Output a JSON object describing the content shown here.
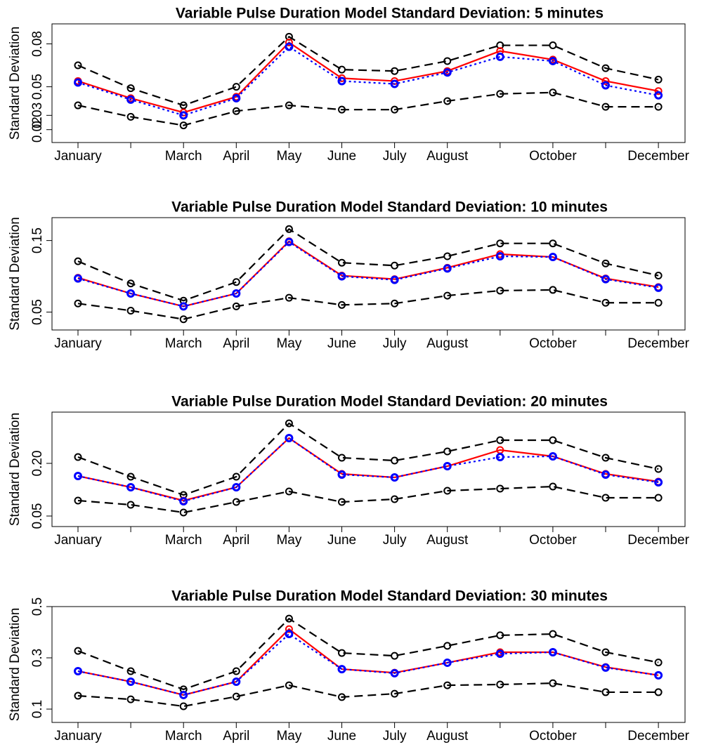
{
  "chart_data": [
    {
      "type": "line",
      "title": "Variable Pulse Duration Model Standard Deviation: 5 minutes",
      "y_label": "Standard Deviation",
      "categories": [
        "January",
        null,
        "March",
        "April",
        "May",
        "June",
        "July",
        "August",
        null,
        "October",
        null,
        "December"
      ],
      "ylim": [
        0.011,
        0.094
      ],
      "yticks": [
        0.02,
        0.03,
        0.05,
        0.08
      ],
      "series": [
        {
          "color": "#000000",
          "dash": "dashed",
          "values": [
            0.065,
            0.049,
            0.037,
            0.05,
            0.085,
            0.062,
            0.061,
            0.068,
            0.079,
            0.079,
            0.063,
            0.055
          ]
        },
        {
          "color": "#ff0000",
          "dash": "solid",
          "values": [
            0.054,
            0.042,
            0.032,
            0.043,
            0.081,
            0.056,
            0.054,
            0.061,
            0.075,
            0.069,
            0.054,
            0.047
          ]
        },
        {
          "color": "#0000ff",
          "dash": "dotted",
          "values": [
            0.053,
            0.041,
            0.03,
            0.042,
            0.078,
            0.054,
            0.052,
            0.06,
            0.071,
            0.068,
            0.051,
            0.044
          ]
        },
        {
          "color": "#000000",
          "dash": "dashed",
          "values": [
            0.037,
            0.029,
            0.023,
            0.033,
            0.037,
            0.034,
            0.034,
            0.04,
            0.045,
            0.046,
            0.036,
            0.036
          ]
        }
      ]
    },
    {
      "type": "line",
      "title": "Variable Pulse Duration Model Standard Deviation: 10 minutes",
      "y_label": "Standard Deviation",
      "categories": [
        "January",
        null,
        "March",
        "April",
        "May",
        "June",
        "July",
        "August",
        null,
        "October",
        null,
        "December"
      ],
      "ylim": [
        0.025,
        0.182
      ],
      "yticks": [
        0.05,
        0.15
      ],
      "series": [
        {
          "color": "#000000",
          "dash": "dashed",
          "values": [
            0.121,
            0.09,
            0.066,
            0.092,
            0.166,
            0.119,
            0.115,
            0.128,
            0.146,
            0.146,
            0.118,
            0.101
          ]
        },
        {
          "color": "#ff0000",
          "dash": "solid",
          "values": [
            0.098,
            0.076,
            0.058,
            0.076,
            0.149,
            0.101,
            0.096,
            0.112,
            0.131,
            0.127,
            0.097,
            0.085
          ]
        },
        {
          "color": "#0000ff",
          "dash": "dotted",
          "values": [
            0.097,
            0.076,
            0.058,
            0.076,
            0.148,
            0.1,
            0.095,
            0.111,
            0.128,
            0.127,
            0.096,
            0.084
          ]
        },
        {
          "color": "#000000",
          "dash": "dashed",
          "values": [
            0.062,
            0.052,
            0.04,
            0.058,
            0.07,
            0.06,
            0.062,
            0.073,
            0.08,
            0.081,
            0.063,
            0.063
          ]
        }
      ]
    },
    {
      "type": "line",
      "title": "Variable Pulse Duration Model Standard Deviation: 20 minutes",
      "y_label": "Standard Deviation",
      "categories": [
        "January",
        null,
        "March",
        "April",
        "May",
        "June",
        "July",
        "August",
        null,
        "October",
        null,
        "December"
      ],
      "ylim": [
        0.02,
        0.346
      ],
      "yticks": [
        0.05,
        {
          "value": 0.2,
          "label": "0.20"
        }
      ],
      "series": [
        {
          "color": "#000000",
          "dash": "dashed",
          "values": [
            0.218,
            0.162,
            0.11,
            0.162,
            0.314,
            0.216,
            0.208,
            0.234,
            0.266,
            0.266,
            0.216,
            0.184
          ]
        },
        {
          "color": "#ff0000",
          "dash": "solid",
          "values": [
            0.164,
            0.132,
            0.094,
            0.132,
            0.272,
            0.17,
            0.16,
            0.192,
            0.238,
            0.22,
            0.17,
            0.148
          ]
        },
        {
          "color": "#0000ff",
          "dash": "dotted",
          "values": [
            0.164,
            0.132,
            0.092,
            0.132,
            0.272,
            0.168,
            0.16,
            0.192,
            0.218,
            0.22,
            0.168,
            0.146
          ]
        },
        {
          "color": "#000000",
          "dash": "dashed",
          "values": [
            0.094,
            0.082,
            0.06,
            0.09,
            0.12,
            0.09,
            0.098,
            0.122,
            0.128,
            0.134,
            0.102,
            0.102
          ]
        }
      ]
    },
    {
      "type": "line",
      "title": "Variable Pulse Duration Model Standard Deviation: 30 minutes",
      "y_label": "Standard Deviation",
      "categories": [
        "January",
        null,
        "March",
        "April",
        "May",
        "June",
        "July",
        "August",
        null,
        "October",
        null,
        "December"
      ],
      "ylim": [
        0.048,
        0.5
      ],
      "yticks": [
        0.1,
        0.3,
        0.5
      ],
      "series": [
        {
          "color": "#000000",
          "dash": "dashed",
          "values": [
            0.327,
            0.248,
            0.177,
            0.248,
            0.453,
            0.319,
            0.308,
            0.347,
            0.388,
            0.393,
            0.322,
            0.282
          ]
        },
        {
          "color": "#ff0000",
          "dash": "solid",
          "values": [
            0.248,
            0.207,
            0.155,
            0.207,
            0.412,
            0.256,
            0.242,
            0.281,
            0.322,
            0.322,
            0.264,
            0.232
          ]
        },
        {
          "color": "#0000ff",
          "dash": "dotted",
          "values": [
            0.248,
            0.207,
            0.155,
            0.207,
            0.393,
            0.256,
            0.24,
            0.281,
            0.316,
            0.322,
            0.262,
            0.232
          ]
        },
        {
          "color": "#000000",
          "dash": "dashed",
          "values": [
            0.152,
            0.138,
            0.111,
            0.149,
            0.193,
            0.147,
            0.16,
            0.193,
            0.196,
            0.201,
            0.166,
            0.166
          ]
        }
      ]
    }
  ]
}
